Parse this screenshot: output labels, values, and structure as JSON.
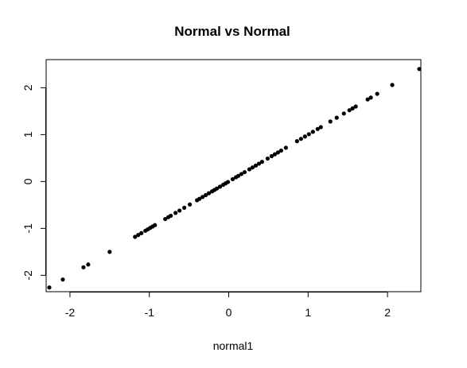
{
  "chart_data": {
    "type": "scatter",
    "title": "Normal vs Normal",
    "xlabel": "normal1",
    "ylabel": "",
    "xlim": [
      -2.3,
      2.42
    ],
    "ylim": [
      -2.35,
      2.6
    ],
    "x_ticks": [
      -2,
      -1,
      0,
      1,
      2
    ],
    "y_ticks": [
      -2,
      -1,
      0,
      1,
      2
    ],
    "grid": false,
    "legend": "none",
    "point_color": "#000000",
    "series": [
      {
        "x": [
          -2.26,
          -2.09,
          -1.83,
          -1.77,
          -1.5,
          -1.18,
          -1.14,
          -1.1,
          -1.05,
          -1.02,
          -0.99,
          -0.96,
          -0.93,
          -0.8,
          -0.76,
          -0.73,
          -0.67,
          -0.62,
          -0.56,
          -0.49,
          -0.4,
          -0.37,
          -0.33,
          -0.29,
          -0.25,
          -0.21,
          -0.18,
          -0.15,
          -0.11,
          -0.07,
          -0.04,
          -0.01,
          0.05,
          0.09,
          0.12,
          0.16,
          0.2,
          0.26,
          0.3,
          0.34,
          0.38,
          0.42,
          0.49,
          0.54,
          0.58,
          0.62,
          0.66,
          0.72,
          0.86,
          0.91,
          0.96,
          1.01,
          1.06,
          1.12,
          1.16,
          1.28,
          1.36,
          1.45,
          1.52,
          1.56,
          1.6,
          1.75,
          1.79,
          1.87,
          2.06,
          2.4
        ],
        "y": [
          -2.26,
          -2.09,
          -1.83,
          -1.77,
          -1.5,
          -1.18,
          -1.14,
          -1.1,
          -1.05,
          -1.02,
          -0.99,
          -0.96,
          -0.93,
          -0.8,
          -0.76,
          -0.73,
          -0.67,
          -0.62,
          -0.56,
          -0.49,
          -0.4,
          -0.37,
          -0.33,
          -0.29,
          -0.25,
          -0.21,
          -0.18,
          -0.15,
          -0.11,
          -0.07,
          -0.04,
          -0.01,
          0.05,
          0.09,
          0.12,
          0.16,
          0.2,
          0.26,
          0.3,
          0.34,
          0.38,
          0.42,
          0.49,
          0.54,
          0.58,
          0.62,
          0.66,
          0.72,
          0.86,
          0.91,
          0.96,
          1.01,
          1.06,
          1.12,
          1.16,
          1.28,
          1.36,
          1.45,
          1.52,
          1.56,
          1.6,
          1.75,
          1.79,
          1.87,
          2.06,
          2.4
        ]
      }
    ]
  }
}
